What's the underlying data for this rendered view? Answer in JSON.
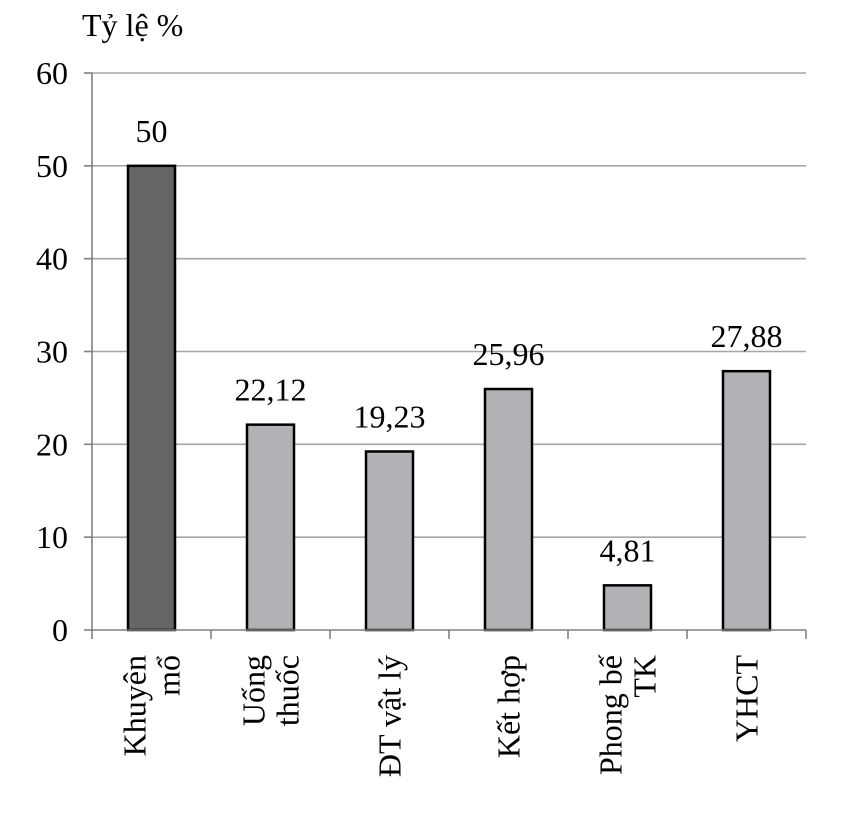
{
  "chart_data": {
    "type": "bar",
    "title": "",
    "xlabel": "",
    "ylabel": "Tỷ lệ %",
    "ylim": [
      0,
      60
    ],
    "yticks": [
      "0",
      "10",
      "20",
      "30",
      "40",
      "50",
      "60"
    ],
    "grid": true,
    "legend": "none",
    "categories": [
      [
        "Khuyên",
        "mổ"
      ],
      [
        "Uống",
        "thuốc"
      ],
      [
        "ĐT vật lý"
      ],
      [
        "Kết hợp"
      ],
      [
        "Phong bế",
        "TK"
      ],
      [
        "YHCT"
      ]
    ],
    "values": [
      50,
      22.12,
      19.23,
      25.96,
      4.81,
      27.88
    ],
    "data_labels": [
      "50",
      "22,12",
      "19,23",
      "25,96",
      "4,81",
      "27,88"
    ],
    "colors": {
      "highlight": "#666666",
      "bar": "#b2b2b6",
      "grid": "#a6a6a6",
      "axis": "#808080",
      "stroke": "#000000"
    },
    "highlight_index": 0
  }
}
